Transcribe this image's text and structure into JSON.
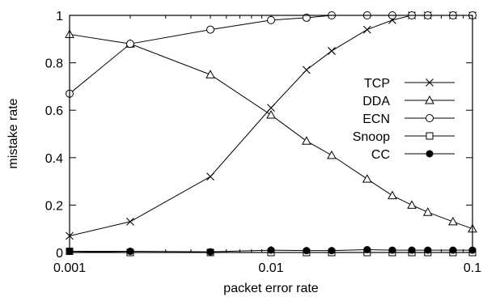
{
  "chart_data": {
    "type": "line",
    "xlabel": "packet error rate",
    "ylabel": "mistake rate",
    "xscale": "log",
    "xlim": [
      0.001,
      0.1
    ],
    "ylim": [
      0,
      1
    ],
    "xticks": [
      {
        "value": 0.001,
        "label": "0.001"
      },
      {
        "value": 0.01,
        "label": "0.01"
      },
      {
        "value": 0.1,
        "label": "0.1"
      }
    ],
    "yticks": [
      {
        "value": 0,
        "label": "0"
      },
      {
        "value": 0.2,
        "label": "0.2"
      },
      {
        "value": 0.4,
        "label": "0.4"
      },
      {
        "value": 0.6,
        "label": "0.6"
      },
      {
        "value": 0.8,
        "label": "0.8"
      },
      {
        "value": 1,
        "label": "1"
      }
    ],
    "grid": false,
    "legend_position": "right",
    "series": [
      {
        "name": "TCP",
        "marker": "x",
        "x": [
          0.001,
          0.002,
          0.005,
          0.01,
          0.015,
          0.02,
          0.03,
          0.04,
          0.05,
          0.06,
          0.08,
          0.1
        ],
        "y": [
          0.07,
          0.13,
          0.32,
          0.61,
          0.77,
          0.85,
          0.94,
          0.98,
          1.0,
          1.0,
          1.0,
          1.0
        ]
      },
      {
        "name": "DDA",
        "marker": "triangle",
        "x": [
          0.001,
          0.002,
          0.005,
          0.01,
          0.015,
          0.02,
          0.03,
          0.04,
          0.05,
          0.06,
          0.08,
          0.1
        ],
        "y": [
          0.92,
          0.88,
          0.75,
          0.58,
          0.47,
          0.41,
          0.31,
          0.24,
          0.2,
          0.17,
          0.13,
          0.1
        ]
      },
      {
        "name": "ECN",
        "marker": "circle",
        "x": [
          0.001,
          0.002,
          0.005,
          0.01,
          0.015,
          0.02,
          0.03,
          0.04,
          0.05,
          0.06,
          0.08,
          0.1
        ],
        "y": [
          0.67,
          0.88,
          0.94,
          0.98,
          0.99,
          1.0,
          1.0,
          1.0,
          1.0,
          1.0,
          1.0,
          1.0
        ]
      },
      {
        "name": "Snoop",
        "marker": "square",
        "x": [
          0.001,
          0.002,
          0.005,
          0.01,
          0.015,
          0.02,
          0.03,
          0.04,
          0.05,
          0.06,
          0.08,
          0.1
        ],
        "y": [
          0.005,
          0.0,
          0.0,
          0.0,
          0.0,
          0.0,
          0.0,
          0.0,
          0.0,
          0.0,
          0.0,
          0.0
        ]
      },
      {
        "name": "CC",
        "marker": "filled-circle",
        "x": [
          0.001,
          0.002,
          0.005,
          0.01,
          0.015,
          0.02,
          0.03,
          0.04,
          0.05,
          0.06,
          0.08,
          0.1
        ],
        "y": [
          0.005,
          0.005,
          0.003,
          0.01,
          0.008,
          0.008,
          0.012,
          0.01,
          0.01,
          0.01,
          0.01,
          0.01
        ]
      }
    ]
  }
}
